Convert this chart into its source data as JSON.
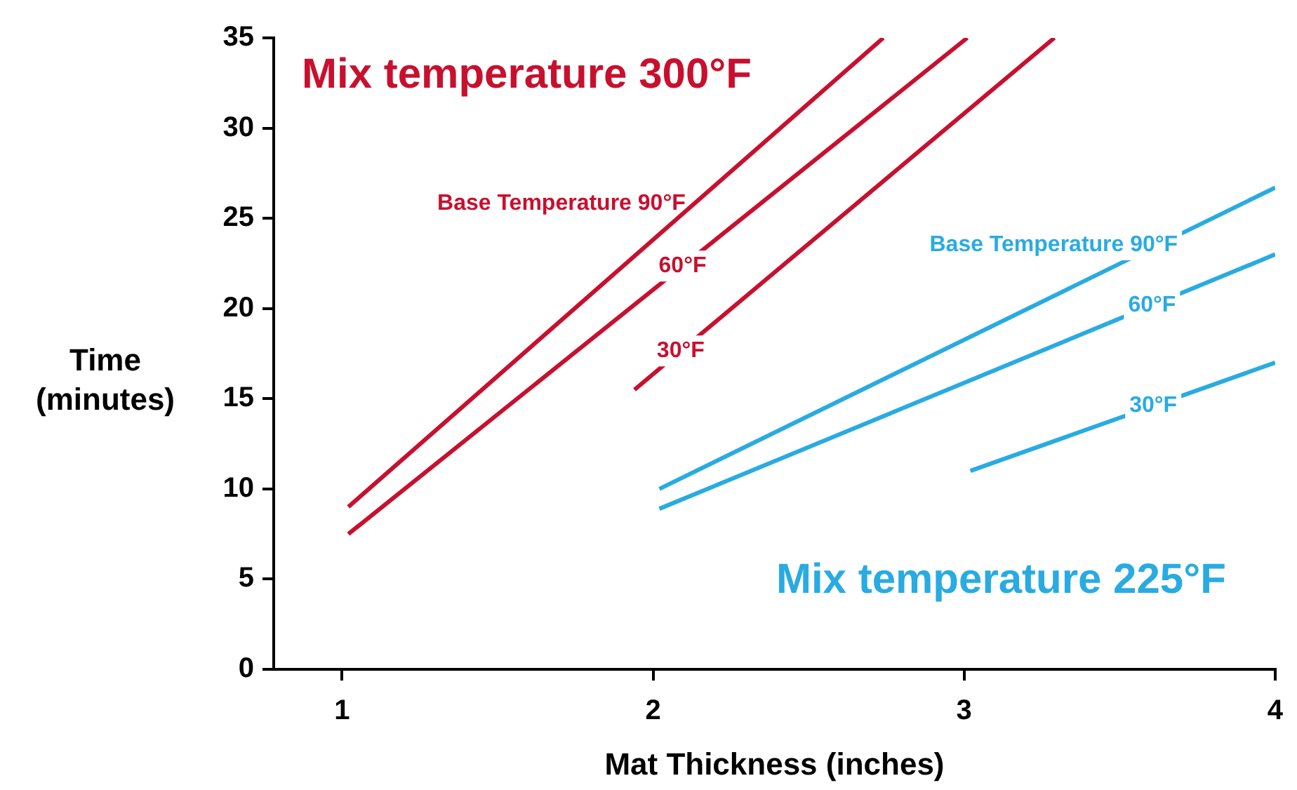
{
  "chart_data": {
    "type": "line",
    "xlabel": "Mat Thickness (inches)",
    "ylabel": "Time (minutes)",
    "xlim": [
      0.78,
      4
    ],
    "xticks": [
      1,
      2,
      3,
      4
    ],
    "ylim": [
      0,
      35
    ],
    "yticks": [
      0,
      5,
      10,
      15,
      20,
      25,
      30,
      35
    ],
    "grid": false,
    "legend": false,
    "marker": "none",
    "line_style": "solid",
    "series": [
      {
        "name": "Base Temperature 90°F",
        "color": "#c8102e",
        "x": [
          1.02,
          2.74
        ],
        "values": [
          9,
          35
        ]
      },
      {
        "name": "60°F",
        "color": "#c8102e",
        "x": [
          1.02,
          3.01
        ],
        "values": [
          7.5,
          35
        ]
      },
      {
        "name": "30°F",
        "color": "#c8102e",
        "x": [
          1.94,
          3.29
        ],
        "values": [
          15.5,
          35
        ]
      },
      {
        "name": "Base Temperature 90°F",
        "color": "#29abe2",
        "x": [
          2.02,
          4
        ],
        "values": [
          10,
          26.7
        ]
      },
      {
        "name": "60°F",
        "color": "#29abe2",
        "x": [
          2.02,
          4
        ],
        "values": [
          8.9,
          23
        ]
      },
      {
        "name": "30°F",
        "color": "#29abe2",
        "x": [
          3.02,
          4
        ],
        "values": [
          11,
          17
        ]
      }
    ],
    "annotations": [
      "Mix temperature 300°F",
      "Mix temperature 225°F"
    ]
  }
}
